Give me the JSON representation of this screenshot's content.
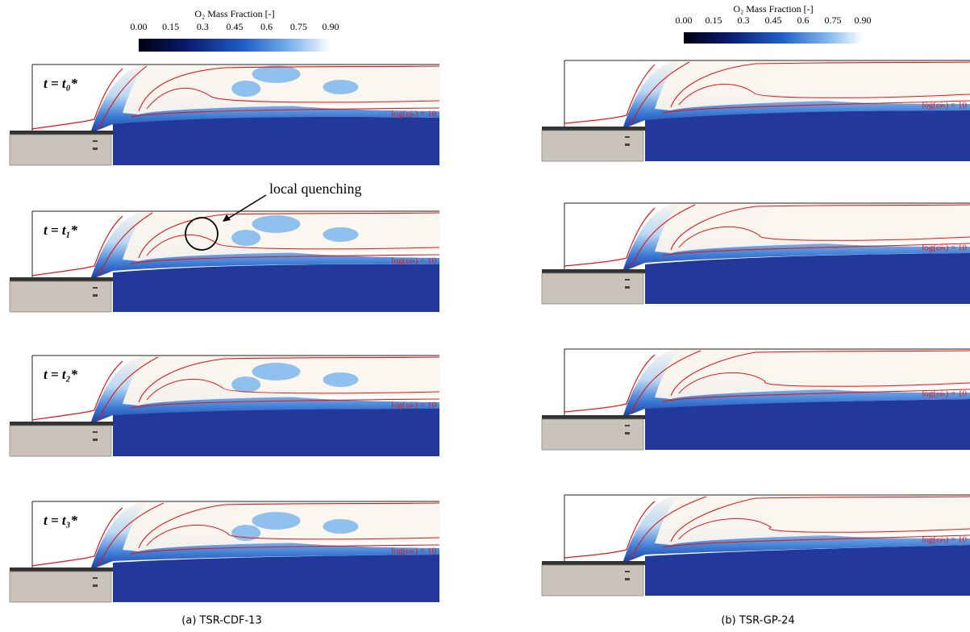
{
  "panels": [
    {
      "colorbar": {
        "title": "O₂ Mass Fraction [-]",
        "ticks": [
          "0.00",
          "0.15",
          "0.3",
          "0.45",
          "0.6",
          "0.75",
          "0.90"
        ]
      },
      "rows": [
        {
          "time_label": "t = t₀*",
          "contour_label": "log(ω̇ₕ) = 10"
        },
        {
          "time_label": "t = t₁*",
          "contour_label": "log(ω̇ₕ) = 10"
        },
        {
          "time_label": "t = t₂*",
          "contour_label": "log(ω̇ₕ) = 10"
        },
        {
          "time_label": "t = t₃*",
          "contour_label": "log(ω̇ₕ) = 10"
        }
      ],
      "annotation": "local quenching",
      "caption": "(a) TSR-CDF-13"
    },
    {
      "colorbar": {
        "title": "O₂ Mass Fraction [-]",
        "ticks": [
          "0.00",
          "0.15",
          "0.3",
          "0.45",
          "0.6",
          "0.75",
          "0.90"
        ]
      },
      "rows": [
        {
          "contour_label": "log(ω̇ₕ) = 10"
        },
        {
          "contour_label": "log(ω̇ₕ) = 10"
        },
        {
          "contour_label": "log(ω̇ₕ) = 10"
        },
        {
          "contour_label": "log(ω̇ₕ) = 10"
        }
      ],
      "caption": "(b) TSR-GP-24"
    }
  ]
}
